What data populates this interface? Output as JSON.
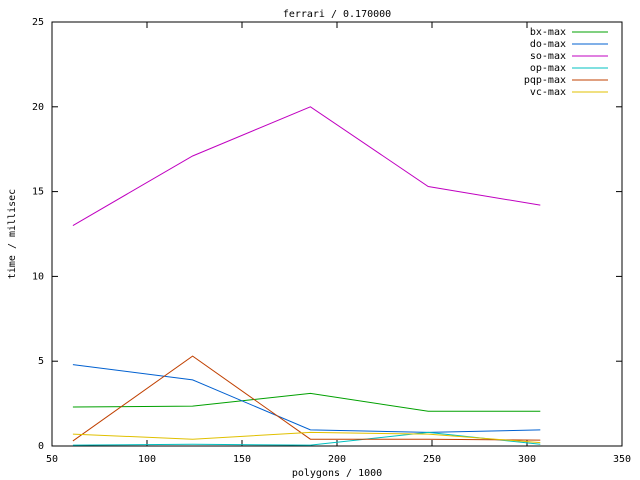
{
  "chart_data": {
    "type": "line",
    "title": "ferrari / 0.170000",
    "x_label": "polygons / 1000",
    "y_label": "time / millisec",
    "x": [
      61,
      124,
      186,
      248,
      307
    ],
    "series": [
      {
        "name": "bx-max",
        "color": "#00a000",
        "values": [
          2.3,
          2.35,
          3.1,
          2.05,
          2.05
        ]
      },
      {
        "name": "do-max",
        "color": "#0060d0",
        "values": [
          4.8,
          3.9,
          0.95,
          0.8,
          0.95
        ]
      },
      {
        "name": "so-max",
        "color": "#c000c0",
        "values": [
          13.0,
          17.1,
          20.0,
          15.3,
          14.2
        ]
      },
      {
        "name": "op-max",
        "color": "#00c0c0",
        "values": [
          0.05,
          0.1,
          0.05,
          0.8,
          0.1
        ]
      },
      {
        "name": "pqp-max",
        "color": "#c04000",
        "values": [
          0.3,
          5.3,
          0.4,
          0.4,
          0.35
        ]
      },
      {
        "name": "vc-max",
        "color": "#e0c000",
        "values": [
          0.7,
          0.4,
          0.8,
          0.7,
          0.2
        ]
      }
    ],
    "xlim": [
      50,
      350
    ],
    "xticks": [
      50,
      100,
      150,
      200,
      250,
      300,
      350
    ],
    "ylim": [
      0,
      25
    ],
    "yticks": [
      0,
      5,
      10,
      15,
      20,
      25
    ],
    "legend": "top-right"
  }
}
